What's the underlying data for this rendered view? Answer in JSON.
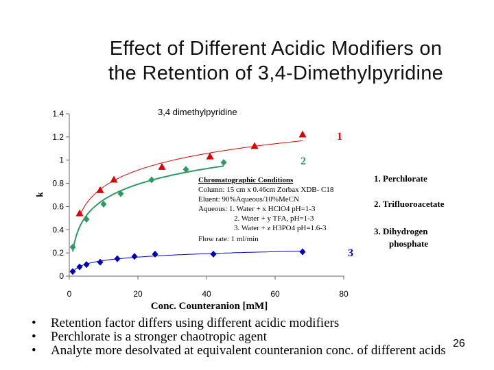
{
  "title": {
    "line1": "Effect of Different Acidic Modifiers on",
    "line2": "the Retention of 3,4-Dimethylpyridine"
  },
  "chart_data": {
    "type": "scatter",
    "title": "3,4 dimethylpyridine",
    "xlabel": "Conc. Counteranion [mM]",
    "ylabel": "k",
    "xlim": [
      0,
      80
    ],
    "ylim": [
      0,
      1.4
    ],
    "x_ticks": [
      "0",
      "20",
      "40",
      "60",
      "80"
    ],
    "y_ticks": [
      "0",
      "0.2",
      "0.4",
      "0.6",
      "0.8",
      "1",
      "1.2",
      "1.4"
    ],
    "series": [
      {
        "name": "1",
        "color": "#dd0000",
        "marker": "triangle",
        "x": [
          3,
          9,
          13,
          27,
          41,
          54,
          68
        ],
        "y": [
          0.54,
          0.74,
          0.83,
          0.94,
          1.03,
          1.12,
          1.22
        ]
      },
      {
        "name": "2",
        "color": "#2e9a62",
        "marker": "diamond",
        "x": [
          1,
          5,
          10,
          15,
          24,
          34,
          45
        ],
        "y": [
          0.25,
          0.49,
          0.62,
          0.71,
          0.83,
          0.92,
          0.98
        ]
      },
      {
        "name": "3",
        "color": "#0000bb",
        "marker": "diamond",
        "x": [
          1,
          3,
          5,
          9,
          14,
          19,
          25,
          42,
          68
        ],
        "y": [
          0.04,
          0.08,
          0.1,
          0.12,
          0.15,
          0.17,
          0.19,
          0.19,
          0.21
        ]
      }
    ],
    "series_labels": [
      "1",
      "2",
      "3"
    ],
    "conditions": {
      "heading": "Chromatographic Conditions",
      "lines": [
        "Column: 15 cm x 0.46cm Zorbax XDB- C18",
        "Eluent:   90%Aqueous/10%MeCN",
        "Aqueous:  1. Water + x HClO4   pH=1-3",
        "2. Water + y  TFA,     pH=1-3",
        "3. Water + z H3PO4   pH=1.6-3",
        "Flow rate: 1 ml/min"
      ]
    },
    "legend": [
      "1.  Perchlorate",
      "2.  Trifluoroacetate",
      "3.  Dihydrogen",
      "phosphate"
    ]
  },
  "bullets": [
    "Retention factor differs using different acidic modifiers",
    "Perchlorate is a stronger chaotropic agent",
    "Analyte more desolvated at equivalent counteranion conc. of different acids"
  ],
  "bullet_symbol": "•",
  "page_number": "26"
}
